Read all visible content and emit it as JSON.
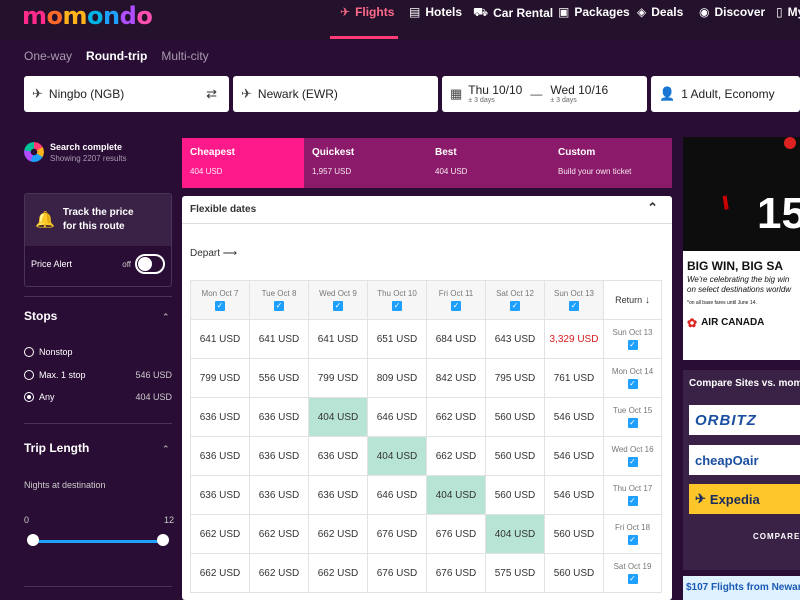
{
  "nav": {
    "logo": [
      "m",
      "o",
      "m",
      "o",
      "n",
      "d",
      "o"
    ],
    "items": [
      {
        "label": "Flights",
        "icon": "plane-icon",
        "active": true
      },
      {
        "label": "Hotels",
        "icon": "bed-icon",
        "active": false
      },
      {
        "label": "Car Rental",
        "icon": "car-icon",
        "active": false
      },
      {
        "label": "Packages",
        "icon": "suitcase-icon",
        "active": false
      },
      {
        "label": "Deals",
        "icon": "tag-icon",
        "active": false
      },
      {
        "label": "Discover",
        "icon": "compass-icon",
        "active": false
      },
      {
        "label": "My",
        "icon": "user-icon",
        "active": false
      }
    ]
  },
  "search": {
    "trip_types": [
      "One-way",
      "Round-trip",
      "Multi-city"
    ],
    "selected_trip": "Round-trip",
    "origin": "Ningbo (NGB)",
    "destination": "Newark (EWR)",
    "depart_date": "Thu 10/10",
    "depart_flex": "± 3 days",
    "return_date": "Wed 10/16",
    "return_flex": "± 3 days",
    "passengers": "1 Adult, Economy"
  },
  "sidebar": {
    "status_title": "Search complete",
    "status_sub": "Showing 2207 results",
    "track_line1": "Track the price",
    "track_line2": "for this route",
    "price_alert": "Price Alert",
    "toggle_state": "off",
    "stops_title": "Stops",
    "stops": [
      {
        "label": "Nonstop",
        "price": "",
        "selected": false
      },
      {
        "label": "Max. 1 stop",
        "price": "546 USD",
        "selected": false
      },
      {
        "label": "Any",
        "price": "404 USD",
        "selected": true
      }
    ],
    "trip_length_title": "Trip Length",
    "nights_label": "Nights at destination",
    "nights_min": "0",
    "nights_max": "12"
  },
  "tabs": [
    {
      "label": "Cheapest",
      "sub": "404 USD",
      "color": "#ff1a8c"
    },
    {
      "label": "Quickest",
      "sub": "1,957 USD",
      "color": "#8c1a6a"
    },
    {
      "label": "Best",
      "sub": "404 USD",
      "color": "#8c1a6a"
    },
    {
      "label": "Custom",
      "sub": "Build your own ticket",
      "color": "#8c1a6a"
    }
  ],
  "flex": {
    "title": "Flexible dates",
    "depart_label": "Depart",
    "return_label": "Return",
    "depart_dates": [
      "Mon Oct 7",
      "Tue Oct 8",
      "Wed Oct 9",
      "Thu Oct 10",
      "Fri Oct 11",
      "Sat Oct 12",
      "Sun Oct 13"
    ],
    "rows": [
      {
        "ret": "Sun Oct 13",
        "prices": [
          "641 USD",
          "641 USD",
          "641 USD",
          "651 USD",
          "684 USD",
          "643 USD",
          "3,329 USD"
        ]
      },
      {
        "ret": "Mon Oct 14",
        "prices": [
          "799 USD",
          "556 USD",
          "799 USD",
          "809 USD",
          "842 USD",
          "795 USD",
          "761 USD"
        ]
      },
      {
        "ret": "Tue Oct 15",
        "prices": [
          "636 USD",
          "636 USD",
          "404 USD",
          "646 USD",
          "662 USD",
          "560 USD",
          "546 USD"
        ]
      },
      {
        "ret": "Wed Oct 16",
        "prices": [
          "636 USD",
          "636 USD",
          "636 USD",
          "404 USD",
          "662 USD",
          "560 USD",
          "546 USD"
        ]
      },
      {
        "ret": "Thu Oct 17",
        "prices": [
          "636 USD",
          "636 USD",
          "636 USD",
          "646 USD",
          "404 USD",
          "560 USD",
          "546 USD"
        ]
      },
      {
        "ret": "Fri Oct 18",
        "prices": [
          "662 USD",
          "662 USD",
          "662 USD",
          "676 USD",
          "676 USD",
          "404 USD",
          "560 USD"
        ]
      },
      {
        "ret": "Sat Oct 19",
        "prices": [
          "662 USD",
          "662 USD",
          "662 USD",
          "676 USD",
          "676 USD",
          "575 USD",
          "560 USD"
        ]
      }
    ]
  },
  "ads": {
    "ad1_num": "15",
    "ad1_headline": "BIG WIN, BIG SA",
    "ad1_line1": "We're celebrating the big win",
    "ad1_line2": "on select destinations worldw",
    "ad1_fine": "*on all base fares until June 14.",
    "ad1_brand": "AIR CANADA",
    "compare_title": "Compare Sites vs. mom",
    "brands": [
      "ORBITZ",
      "cheapOair",
      "Expedia"
    ],
    "compare_btn": "COMPARE A",
    "bottom": "$107 Flights from Newar"
  },
  "colors": {
    "accent": "#ff3b75",
    "highlight": "#b8e4d6",
    "checkbox": "#1fa0ff"
  }
}
